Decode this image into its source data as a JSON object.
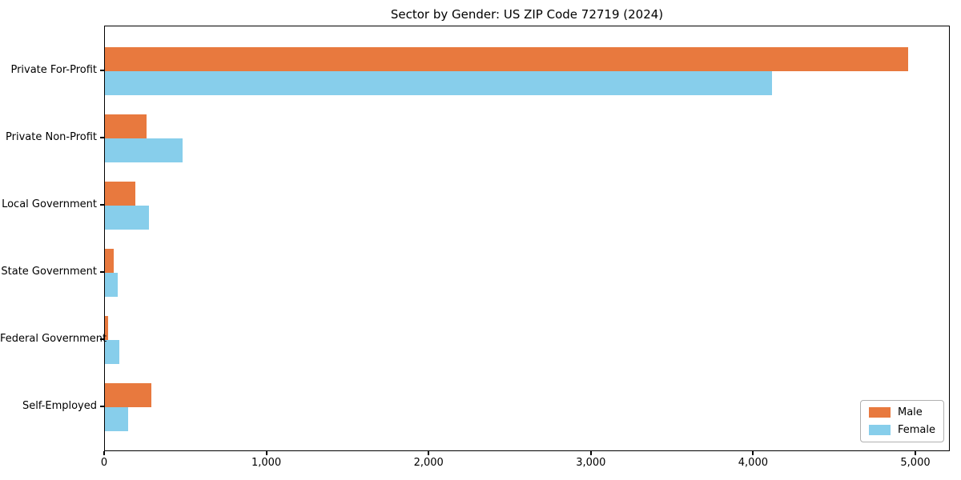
{
  "chart_data": {
    "type": "bar",
    "orientation": "horizontal",
    "title": "Sector by Gender: US ZIP Code 72719 (2024)",
    "categories": [
      "Private For-Profit",
      "Private Non-Profit",
      "Local Government",
      "State Government",
      "Federal Government",
      "Self-Employed"
    ],
    "series": [
      {
        "name": "Male",
        "color": "#e8793e",
        "values": [
          4950,
          255,
          190,
          55,
          20,
          285
        ]
      },
      {
        "name": "Female",
        "color": "#87ceeb",
        "values": [
          4110,
          480,
          270,
          80,
          90,
          145
        ]
      }
    ],
    "xlabel": "",
    "ylabel": "",
    "xlim": [
      0,
      5000
    ],
    "x_ticks": [
      0,
      1000,
      2000,
      3000,
      4000,
      5000
    ],
    "x_tick_labels": [
      "0",
      "1,000",
      "2,000",
      "3,000",
      "4,000",
      "5,000"
    ],
    "grid": false,
    "legend_position": "lower right",
    "frame_color": "#000000",
    "background_color": "#ffffff"
  }
}
